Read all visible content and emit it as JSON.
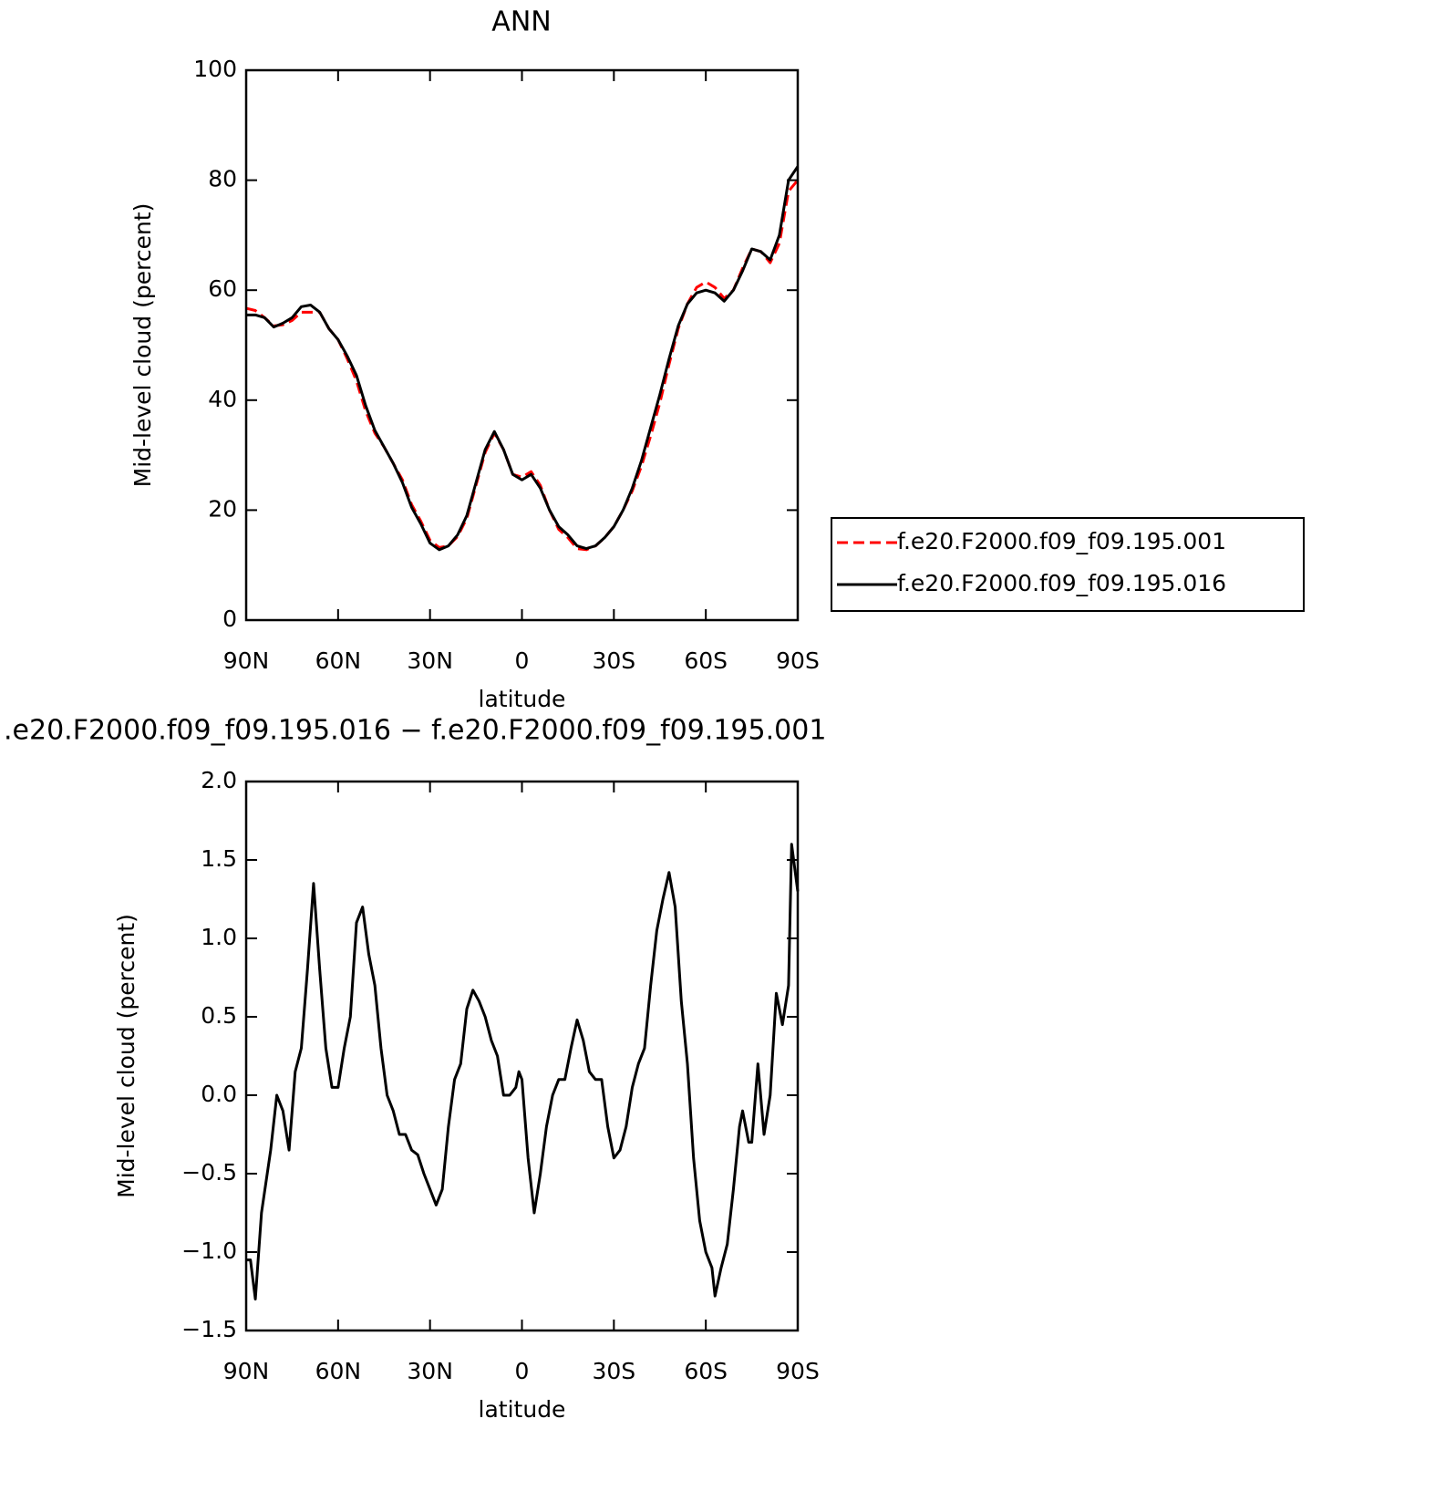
{
  "chart_data": [
    {
      "type": "line",
      "title": "ANN",
      "xlabel": "latitude",
      "ylabel": "Mid-level cloud (percent)",
      "x": [
        90,
        87,
        84,
        81,
        78,
        75,
        72,
        69,
        66,
        63,
        60,
        57,
        54,
        51,
        48,
        45,
        42,
        39,
        36,
        33,
        30,
        27,
        24,
        21,
        18,
        15,
        12,
        9,
        6,
        3,
        0,
        -3,
        -6,
        -9,
        -12,
        -15,
        -18,
        -21,
        -24,
        -27,
        -30,
        -33,
        -36,
        -39,
        -42,
        -45,
        -48,
        -51,
        -54,
        -57,
        -60,
        -63,
        -66,
        -69,
        -72,
        -75,
        -78,
        -81,
        -84,
        -87,
        -90
      ],
      "series": [
        {
          "name": "f.e20.F2000.f09_f09.195.001",
          "color": "#ff0000",
          "linestyle": "dashed",
          "values": [
            56.7,
            56.3,
            55,
            53.5,
            53.7,
            54.5,
            56,
            56,
            56,
            53,
            51,
            47.5,
            43.5,
            38,
            34,
            31.5,
            28.5,
            25.5,
            21,
            18,
            14.5,
            13.2,
            13.5,
            15.2,
            18.5,
            24.5,
            30.5,
            34,
            31,
            26.5,
            26,
            27,
            24.5,
            20,
            16.5,
            15,
            13,
            12.8,
            13.5,
            15,
            17,
            20,
            23.5,
            28,
            33.5,
            39.5,
            46.5,
            53,
            57.5,
            60.5,
            61.5,
            60.5,
            58.5,
            60,
            64,
            67.5,
            67,
            65,
            68.5,
            78,
            80
          ]
        },
        {
          "name": "f.e20.F2000.f09_f09.195.016",
          "color": "#000000",
          "linestyle": "solid",
          "values": [
            55.5,
            55.5,
            55,
            53.3,
            54,
            55,
            57,
            57.3,
            56,
            53,
            51,
            48,
            44.5,
            39,
            34.5,
            31.5,
            28.5,
            25,
            20.5,
            17.5,
            14,
            12.8,
            13.5,
            15.5,
            19,
            25,
            31,
            34.3,
            31,
            26.5,
            25.5,
            26.5,
            24,
            20,
            17,
            15.5,
            13.5,
            13,
            13.5,
            15,
            17,
            20,
            24,
            29,
            35,
            41,
            47.5,
            53.5,
            57.5,
            59.5,
            60,
            59.5,
            58,
            60,
            63.5,
            67.5,
            67,
            65.5,
            70,
            80,
            82.5
          ]
        }
      ],
      "xlim": [
        90,
        -90
      ],
      "ylim": [
        0,
        100
      ],
      "xticks": [
        {
          "value": 90,
          "label": "90N"
        },
        {
          "value": 60,
          "label": "60N"
        },
        {
          "value": 30,
          "label": "30N"
        },
        0,
        {
          "value": -30,
          "label": "30S"
        },
        {
          "value": -60,
          "label": "60S"
        },
        {
          "value": -90,
          "label": "90S"
        }
      ],
      "yticks": [
        0,
        20,
        40,
        60,
        80,
        100
      ],
      "legend": "right"
    },
    {
      "type": "line",
      "title": ".e20.F2000.f09_f09.195.016 − f.e20.F2000.f09_f09.195.001",
      "xlabel": "latitude",
      "ylabel": "Mid-level cloud (percent)",
      "x": [
        90,
        88.6,
        87,
        85,
        82,
        80,
        78,
        76,
        74,
        72,
        70,
        68,
        66,
        64,
        62,
        60,
        58,
        56,
        54,
        52,
        50,
        48,
        46,
        44,
        42,
        40,
        38,
        36,
        34,
        32,
        30,
        28,
        26,
        24,
        22,
        20,
        18,
        16,
        14,
        12,
        10,
        8,
        6,
        4,
        2,
        1,
        0,
        -2,
        -4,
        -6,
        -8,
        -10,
        -12,
        -14,
        -16,
        -18,
        -20,
        -22,
        -24,
        -26,
        -28,
        -30,
        -32,
        -34,
        -36,
        -38,
        -40,
        -42,
        -44,
        -46,
        -48,
        -50,
        -52,
        -54,
        -56,
        -58,
        -60,
        -62,
        -63,
        -65,
        -67,
        -69,
        -71,
        -72,
        -74,
        -75,
        -77,
        -79,
        -81,
        -83,
        -85,
        -87,
        -88,
        -90
      ],
      "series": [
        {
          "color": "#000000",
          "linestyle": "solid",
          "values": [
            -1.05,
            -1.05,
            -1.3,
            -0.75,
            -0.35,
            0.0,
            -0.1,
            -0.35,
            0.15,
            0.3,
            0.8,
            1.35,
            0.8,
            0.3,
            0.05,
            0.05,
            0.3,
            0.5,
            1.1,
            1.2,
            0.9,
            0.7,
            0.3,
            0.0,
            -0.1,
            -0.25,
            -0.25,
            -0.35,
            -0.38,
            -0.5,
            -0.6,
            -0.7,
            -0.6,
            -0.2,
            0.1,
            0.2,
            0.55,
            0.67,
            0.6,
            0.5,
            0.35,
            0.25,
            0.0,
            0.0,
            0.05,
            0.15,
            0.1,
            -0.4,
            -0.75,
            -0.5,
            -0.2,
            0.0,
            0.1,
            0.1,
            0.3,
            0.48,
            0.35,
            0.15,
            0.1,
            0.1,
            -0.2,
            -0.4,
            -0.35,
            -0.2,
            0.05,
            0.2,
            0.3,
            0.7,
            1.05,
            1.25,
            1.42,
            1.2,
            0.6,
            0.2,
            -0.4,
            -0.8,
            -1.0,
            -1.1,
            -1.28,
            -1.1,
            -0.95,
            -0.6,
            -0.2,
            -0.1,
            -0.3,
            -0.3,
            0.2,
            -0.25,
            0.0,
            0.65,
            0.45,
            0.7,
            1.6,
            1.3
          ]
        }
      ],
      "xlim": [
        90,
        -90
      ],
      "ylim": [
        -1.5,
        2.0
      ],
      "xticks": [
        {
          "value": 90,
          "label": "90N"
        },
        {
          "value": 60,
          "label": "60N"
        },
        {
          "value": 30,
          "label": "30N"
        },
        0,
        {
          "value": -30,
          "label": "30S"
        },
        {
          "value": -60,
          "label": "60S"
        },
        {
          "value": -90,
          "label": "90S"
        }
      ],
      "yticks": [
        {
          "value": -1.5,
          "label": "−1.5"
        },
        {
          "value": -1,
          "label": "−1.0"
        },
        {
          "value": -0.5,
          "label": "−0.5"
        },
        {
          "value": 0,
          "label": "0.0"
        },
        0.5,
        {
          "value": 1,
          "label": "1.0"
        },
        1.5,
        {
          "value": 2,
          "label": "2.0"
        }
      ]
    }
  ]
}
